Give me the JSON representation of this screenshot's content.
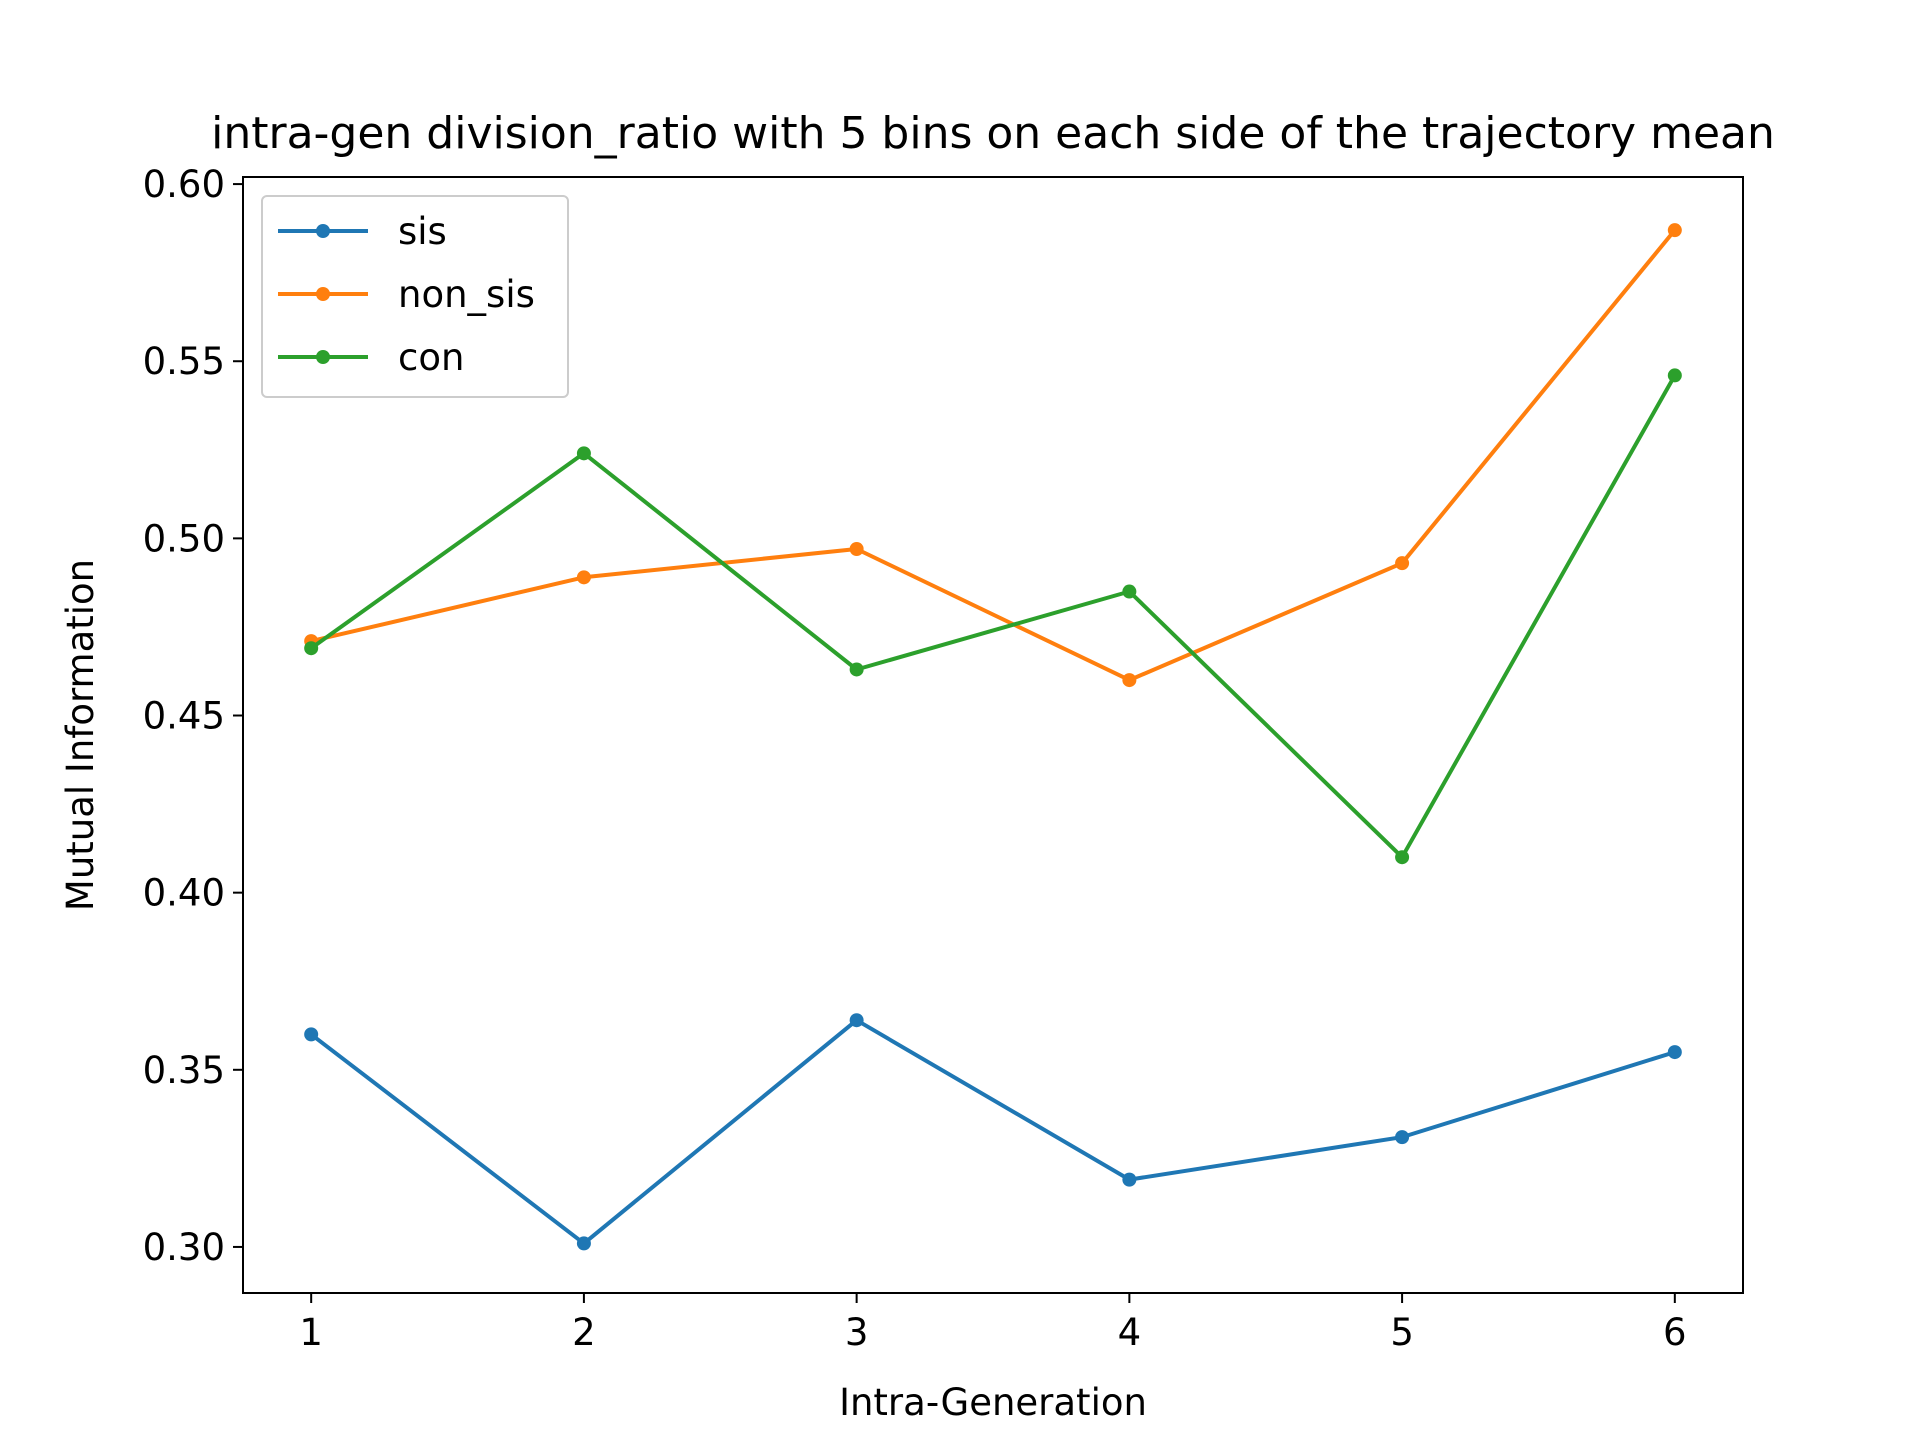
{
  "chart_data": {
    "type": "line",
    "title": "intra-gen division_ratio with 5 bins on each side of the trajectory mean",
    "xlabel": "Intra-Generation",
    "ylabel": "Mutual Information",
    "x": [
      1,
      2,
      3,
      4,
      5,
      6
    ],
    "xticks": [
      "1",
      "2",
      "3",
      "4",
      "5",
      "6"
    ],
    "xlim": [
      0.75,
      6.25
    ],
    "ylim": [
      0.287,
      0.602
    ],
    "yticks": [
      "0.30",
      "0.35",
      "0.40",
      "0.45",
      "0.50",
      "0.55",
      "0.60"
    ],
    "grid": false,
    "legend_position": "upper-left",
    "series": [
      {
        "name": "sis",
        "color": "#1f77b4",
        "values": [
          0.36,
          0.301,
          0.364,
          0.319,
          0.331,
          0.355
        ]
      },
      {
        "name": "non_sis",
        "color": "#ff7f0e",
        "values": [
          0.471,
          0.489,
          0.497,
          0.46,
          0.493,
          0.587
        ]
      },
      {
        "name": "con",
        "color": "#2ca02c",
        "values": [
          0.469,
          0.524,
          0.463,
          0.485,
          0.41,
          0.546
        ]
      }
    ]
  }
}
